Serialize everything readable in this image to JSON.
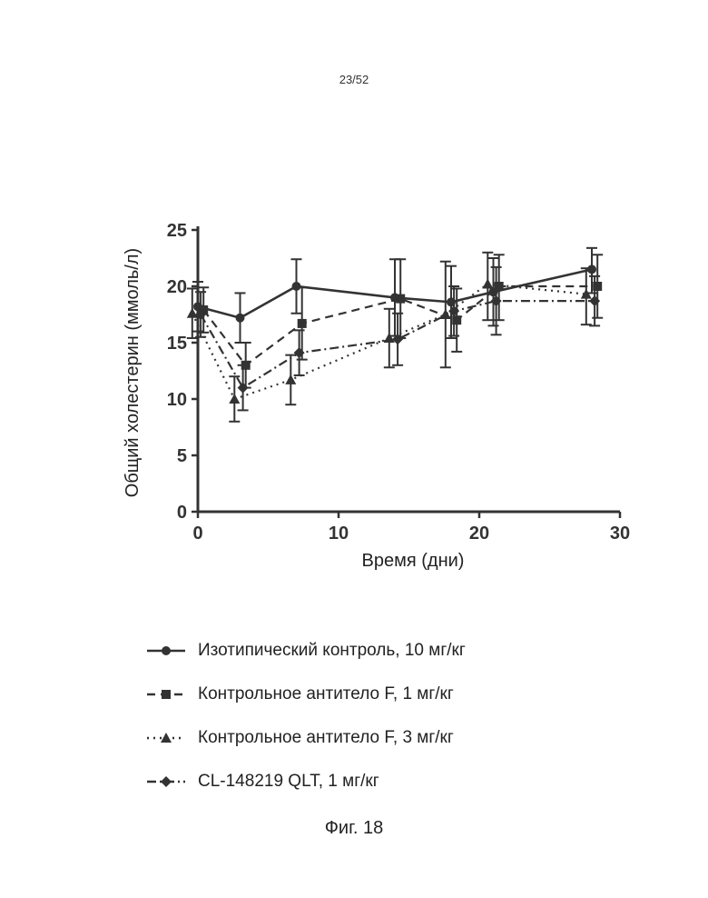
{
  "page": {
    "number": "23/52",
    "caption": "Фиг. 18"
  },
  "chart_data": {
    "type": "line",
    "title": "",
    "xlabel": "Время (дни)",
    "ylabel": "Общий холестерин (ммоль/л)",
    "xlim": [
      0,
      30
    ],
    "ylim": [
      0,
      25
    ],
    "xticks": [
      0,
      10,
      20,
      30
    ],
    "yticks": [
      0,
      5,
      10,
      15,
      20,
      25
    ],
    "grid": false,
    "legend_position": "below",
    "series": [
      {
        "name": "Изотипический контроль, 10 мг/кг",
        "marker": "circle",
        "line_style": "solid",
        "x": [
          0,
          3,
          7,
          14,
          18,
          21,
          28
        ],
        "y": [
          18.2,
          17.2,
          20.0,
          19.0,
          18.6,
          19.5,
          21.5
        ],
        "err_low": [
          16.0,
          15.0,
          17.6,
          15.6,
          15.4,
          16.5,
          19.4
        ],
        "err_high": [
          20.4,
          19.4,
          22.4,
          22.4,
          21.8,
          22.5,
          23.4
        ]
      },
      {
        "name": "Контрольное антитело F, 1 мг/кг",
        "marker": "square",
        "line_style": "dashed",
        "x": [
          0,
          3,
          7,
          14,
          18,
          21,
          28
        ],
        "y": [
          17.9,
          13.0,
          16.7,
          18.9,
          17.0,
          20.0,
          20.0
        ],
        "err_low": [
          15.9,
          11.0,
          13.5,
          15.4,
          14.2,
          17.0,
          17.2
        ],
        "err_high": [
          19.9,
          15.0,
          19.9,
          22.4,
          19.8,
          22.8,
          22.8
        ]
      },
      {
        "name": "Контрольное антитело F, 3 мг/кг",
        "marker": "triangle",
        "line_style": "dotted",
        "x": [
          0,
          3,
          7,
          14,
          18,
          21,
          28
        ],
        "y": [
          17.6,
          10.0,
          11.7,
          15.4,
          17.5,
          20.2,
          19.3
        ],
        "err_low": [
          15.4,
          8.0,
          9.5,
          12.8,
          12.8,
          17.0,
          16.6
        ],
        "err_high": [
          19.8,
          12.0,
          13.9,
          18.0,
          22.2,
          23.0,
          21.6
        ]
      },
      {
        "name": "CL-148219 QLT, 1 мг/кг",
        "marker": "diamond",
        "line_style": "dashdot",
        "x": [
          0,
          3,
          7,
          14,
          18,
          21,
          28
        ],
        "y": [
          17.5,
          11.0,
          14.1,
          15.3,
          17.8,
          18.7,
          18.7
        ],
        "err_low": [
          15.5,
          9.0,
          12.1,
          13.0,
          15.6,
          15.7,
          16.5
        ],
        "err_high": [
          19.5,
          13.0,
          16.1,
          17.6,
          20.0,
          21.7,
          20.9
        ]
      }
    ]
  }
}
